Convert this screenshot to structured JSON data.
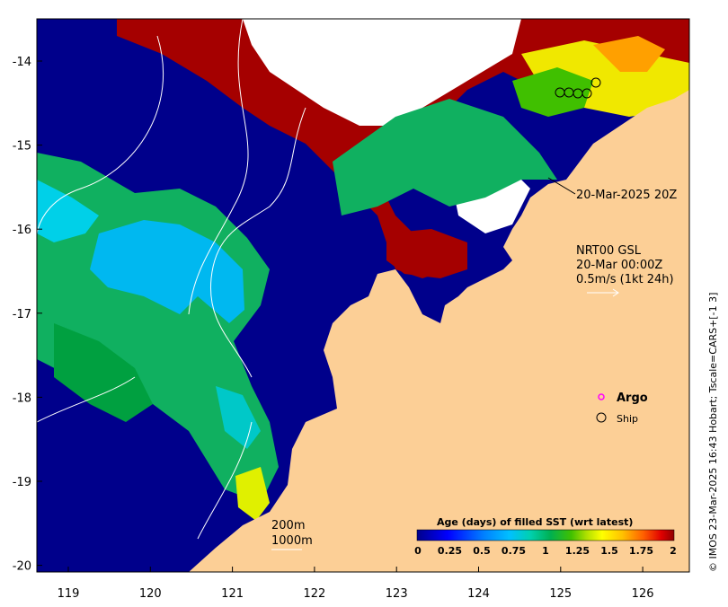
{
  "map": {
    "timestamp_label": "20-Mar-2025 20Z",
    "current_title": "NRT00 GSL",
    "current_time": "20-Mar 00:00Z",
    "current_scale": "0.5m/s (1kt 24h)",
    "isobath_200": "200m",
    "isobath_1000": "1000m",
    "credit": "© IMOS 23-Mar-2025 16:43 Hobart; Tscale=CARS+[-1 3]",
    "x_ticks": [
      "119",
      "120",
      "121",
      "122",
      "123",
      "124",
      "125",
      "126"
    ],
    "y_ticks": [
      "-14",
      "-15",
      "-16",
      "-17",
      "-18",
      "-19",
      "-20"
    ],
    "legend": {
      "argo": "Argo",
      "ship": "Ship"
    },
    "colorbar": {
      "title": "Age (days) of filled SST (wrt latest)",
      "ticks": [
        "0",
        "0.25",
        "0.5",
        "0.75",
        "1",
        "1.25",
        "1.5",
        "1.75",
        "2"
      ]
    },
    "colors": {
      "land": "#fccf96",
      "cloud": "#ffffff",
      "age0": "#00008b",
      "age_high": "#a50000"
    }
  }
}
